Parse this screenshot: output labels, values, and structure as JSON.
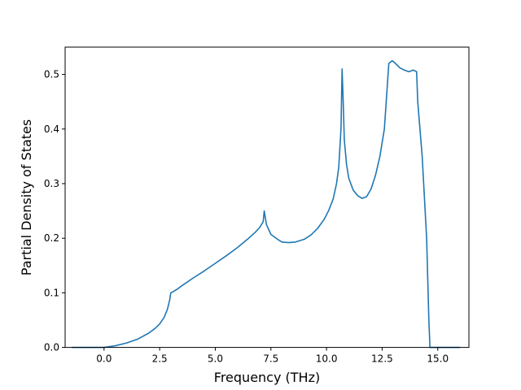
{
  "chart_data": {
    "type": "line",
    "xlabel": "Frequency (THz)",
    "ylabel": "Partial Density of States",
    "xlim": [
      -1.75,
      16.4
    ],
    "ylim": [
      0.0,
      0.55
    ],
    "xticks": [
      0.0,
      2.5,
      5.0,
      7.5,
      10.0,
      12.5,
      15.0
    ],
    "xtick_labels": [
      "0.0",
      "2.5",
      "5.0",
      "7.5",
      "10.0",
      "12.5",
      "15.0"
    ],
    "yticks": [
      0.0,
      0.1,
      0.2,
      0.3,
      0.4,
      0.5
    ],
    "ytick_labels": [
      "0.0",
      "0.1",
      "0.2",
      "0.3",
      "0.4",
      "0.5"
    ],
    "grid": false,
    "series": [
      {
        "color": "#1f77b4",
        "x": [
          -1.45,
          0.0,
          0.5,
          1.0,
          1.5,
          2.0,
          2.3,
          2.5,
          2.7,
          2.85,
          2.95,
          3.0,
          3.1,
          3.3,
          3.5,
          4.0,
          4.5,
          5.0,
          5.5,
          6.0,
          6.5,
          6.8,
          7.0,
          7.15,
          7.2,
          7.3,
          7.5,
          7.8,
          8.0,
          8.3,
          8.6,
          9.0,
          9.3,
          9.6,
          9.9,
          10.1,
          10.3,
          10.45,
          10.55,
          10.65,
          10.7,
          10.75,
          10.8,
          10.9,
          11.0,
          11.2,
          11.4,
          11.6,
          11.8,
          12.0,
          12.2,
          12.4,
          12.6,
          12.8,
          12.95,
          13.05,
          13.15,
          13.3,
          13.5,
          13.7,
          13.9,
          14.05,
          14.1,
          14.3,
          14.5,
          14.6,
          14.65,
          15.0,
          16.0
        ],
        "y": [
          0.0,
          0.0,
          0.003,
          0.008,
          0.015,
          0.026,
          0.035,
          0.043,
          0.055,
          0.07,
          0.087,
          0.1,
          0.102,
          0.107,
          0.113,
          0.127,
          0.14,
          0.154,
          0.168,
          0.183,
          0.2,
          0.211,
          0.22,
          0.23,
          0.25,
          0.225,
          0.207,
          0.198,
          0.193,
          0.192,
          0.193,
          0.198,
          0.206,
          0.218,
          0.235,
          0.251,
          0.272,
          0.3,
          0.33,
          0.4,
          0.51,
          0.45,
          0.38,
          0.335,
          0.31,
          0.288,
          0.278,
          0.273,
          0.276,
          0.29,
          0.315,
          0.35,
          0.4,
          0.52,
          0.525,
          0.522,
          0.518,
          0.512,
          0.508,
          0.505,
          0.508,
          0.505,
          0.45,
          0.35,
          0.2,
          0.05,
          0.0,
          0.0,
          0.0
        ]
      }
    ]
  }
}
